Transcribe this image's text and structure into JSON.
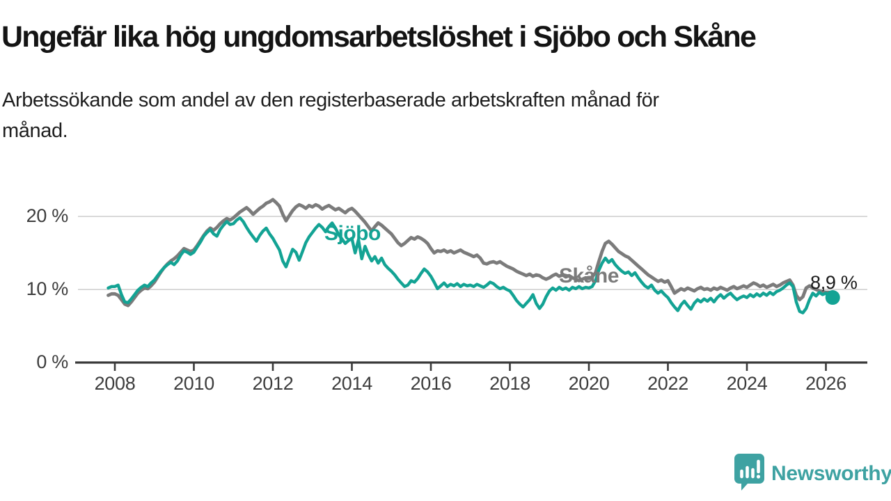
{
  "title": "Ungefär lika hög ungdomsarbetslöshet i Sjöbo och Skåne",
  "subtitle_lines": [
    "Arbetssökande som andel av den registerbaserade arbetskraften månad för",
    "månad."
  ],
  "chart_data": {
    "type": "line",
    "unit": "percent",
    "title": "Ungefär lika hög ungdomsarbetslöshet i Sjöbo och Skåne",
    "subtitle": "Arbetssökande som andel av den registerbaserade arbetskraften månad för månad.",
    "x_axis": {
      "ticks": [
        "2008",
        "2010",
        "2012",
        "2014",
        "2016",
        "2018",
        "2020",
        "2022",
        "2024",
        "2026"
      ],
      "range": [
        2007.8,
        2026.4
      ]
    },
    "y_axis": {
      "ticks": [
        {
          "value": 0,
          "label": "0 %"
        },
        {
          "value": 10,
          "label": "10 %"
        },
        {
          "value": 20,
          "label": "20 %"
        }
      ],
      "gridlines": [
        10,
        20
      ],
      "range": [
        0,
        24
      ],
      "grid_color": "#d9d9d9",
      "axis_color": "#3a3a3a"
    },
    "legend_position": "inline-series-labels",
    "end_label": "8,9 %",
    "end_value": 8.9,
    "series": [
      {
        "name": "Skåne",
        "color": "#7b7b7b",
        "stroke_width": 4.8,
        "start": "2007-11",
        "values": [
          9.2,
          9.4,
          9.4,
          9.2,
          8.6,
          8.0,
          7.8,
          8.3,
          8.9,
          9.5,
          9.9,
          10.2,
          10.1,
          10.5,
          11.0,
          11.7,
          12.4,
          13.0,
          13.5,
          13.9,
          14.2,
          14.6,
          15.1,
          15.6,
          15.4,
          15.2,
          15.4,
          16.0,
          16.7,
          17.4,
          18.0,
          18.4,
          18.1,
          18.5,
          19.0,
          19.4,
          19.7,
          19.5,
          19.8,
          20.2,
          20.6,
          20.9,
          21.2,
          20.8,
          20.3,
          20.7,
          21.1,
          21.4,
          21.8,
          22.0,
          22.3,
          21.9,
          21.4,
          20.3,
          19.4,
          20.1,
          20.8,
          21.3,
          21.6,
          21.4,
          21.1,
          21.5,
          21.3,
          21.6,
          21.4,
          21.0,
          21.3,
          21.5,
          21.2,
          20.9,
          21.1,
          20.8,
          20.5,
          20.9,
          21.1,
          20.7,
          20.2,
          19.7,
          19.2,
          18.6,
          18.0,
          18.6,
          19.1,
          18.8,
          18.4,
          18.0,
          17.6,
          17.0,
          16.4,
          16.0,
          16.3,
          16.7,
          17.1,
          16.9,
          17.2,
          17.0,
          16.7,
          16.3,
          15.6,
          15.0,
          15.3,
          15.2,
          15.4,
          15.1,
          15.3,
          15.0,
          15.2,
          15.4,
          15.1,
          14.9,
          14.7,
          14.5,
          14.7,
          14.3,
          13.6,
          13.5,
          13.7,
          13.8,
          13.6,
          13.8,
          13.5,
          13.2,
          13.0,
          12.8,
          12.5,
          12.3,
          12.1,
          11.9,
          12.1,
          11.8,
          12.0,
          11.9,
          11.6,
          11.4,
          11.6,
          11.9,
          12.1,
          11.8,
          12.0,
          11.7,
          11.9,
          11.6,
          11.4,
          11.2,
          11.4,
          11.6,
          11.5,
          11.7,
          12.3,
          13.8,
          15.2,
          16.3,
          16.6,
          16.2,
          15.7,
          15.2,
          14.9,
          14.6,
          14.4,
          14.0,
          13.6,
          13.2,
          12.8,
          12.4,
          12.0,
          11.7,
          11.4,
          11.1,
          11.3,
          11.0,
          11.2,
          10.4,
          9.5,
          9.8,
          10.1,
          9.9,
          10.2,
          10.0,
          9.8,
          10.1,
          10.3,
          10.0,
          10.1,
          9.9,
          10.2,
          10.0,
          10.3,
          10.1,
          9.9,
          10.2,
          10.4,
          10.1,
          10.3,
          10.5,
          10.3,
          10.6,
          10.9,
          10.7,
          10.4,
          10.6,
          10.3,
          10.5,
          10.7,
          10.4,
          10.6,
          10.9,
          11.1,
          11.3,
          10.6,
          9.2,
          8.6,
          9.0,
          10.2,
          10.5,
          10.2,
          10.0,
          9.8,
          9.7,
          9.6,
          9.6
        ]
      },
      {
        "name": "Sjöbo",
        "color": "#13a394",
        "stroke_width": 4.4,
        "start": "2007-11",
        "end_dot": true,
        "values": [
          10.2,
          10.4,
          10.4,
          10.6,
          9.3,
          8.3,
          8.2,
          8.7,
          9.3,
          9.9,
          10.3,
          10.6,
          10.4,
          10.9,
          11.3,
          11.9,
          12.5,
          13.0,
          13.4,
          13.7,
          13.4,
          13.9,
          14.7,
          15.3,
          15.1,
          14.8,
          15.1,
          15.8,
          16.5,
          17.3,
          17.8,
          18.2,
          17.6,
          17.3,
          18.2,
          18.8,
          19.3,
          18.9,
          19.0,
          19.5,
          19.8,
          19.3,
          18.5,
          17.8,
          17.2,
          16.6,
          17.4,
          18.0,
          18.4,
          17.6,
          17.0,
          16.2,
          15.4,
          13.9,
          13.1,
          14.3,
          15.5,
          15.1,
          14.0,
          15.2,
          16.4,
          17.2,
          17.8,
          18.4,
          18.9,
          18.5,
          17.9,
          18.6,
          19.1,
          18.4,
          17.5,
          16.9,
          16.3,
          16.7,
          17.0,
          15.0,
          16.8,
          14.2,
          15.9,
          14.8,
          13.9,
          14.5,
          13.6,
          14.3,
          13.4,
          12.9,
          12.5,
          12.0,
          11.4,
          10.9,
          10.4,
          10.6,
          11.2,
          11.0,
          11.5,
          12.2,
          12.8,
          12.4,
          11.8,
          11.0,
          10.1,
          10.5,
          10.9,
          10.4,
          10.7,
          10.5,
          10.8,
          10.4,
          10.7,
          10.5,
          10.6,
          10.4,
          10.7,
          10.5,
          10.3,
          10.6,
          11.0,
          10.8,
          10.4,
          10.1,
          10.3,
          10.0,
          9.8,
          9.2,
          8.5,
          8.0,
          7.6,
          8.1,
          8.6,
          9.3,
          8.1,
          7.4,
          8.0,
          9.0,
          9.8,
          10.2,
          9.9,
          10.3,
          10.0,
          10.2,
          9.9,
          10.3,
          10.1,
          10.4,
          10.1,
          10.3,
          10.2,
          10.4,
          11.2,
          12.6,
          13.6,
          14.3,
          13.7,
          14.1,
          13.4,
          12.9,
          12.5,
          12.2,
          12.4,
          11.9,
          12.3,
          11.6,
          11.0,
          10.5,
          10.2,
          10.6,
          9.9,
          9.5,
          9.8,
          9.3,
          8.9,
          8.2,
          7.6,
          7.1,
          7.9,
          8.4,
          7.8,
          7.3,
          8.1,
          8.6,
          8.3,
          8.7,
          8.4,
          8.8,
          8.3,
          8.9,
          9.3,
          8.8,
          9.2,
          9.5,
          9.0,
          8.6,
          8.9,
          9.1,
          8.9,
          9.3,
          9.0,
          9.4,
          9.1,
          9.5,
          9.2,
          9.6,
          9.3,
          9.7,
          9.9,
          10.2,
          10.6,
          10.9,
          10.4,
          8.3,
          7.0,
          6.8,
          7.4,
          8.6,
          9.5,
          9.1,
          9.6,
          9.3,
          9.5,
          8.9
        ]
      }
    ]
  },
  "branding": {
    "name": "Newsworthy",
    "color": "#3ea2a2"
  }
}
